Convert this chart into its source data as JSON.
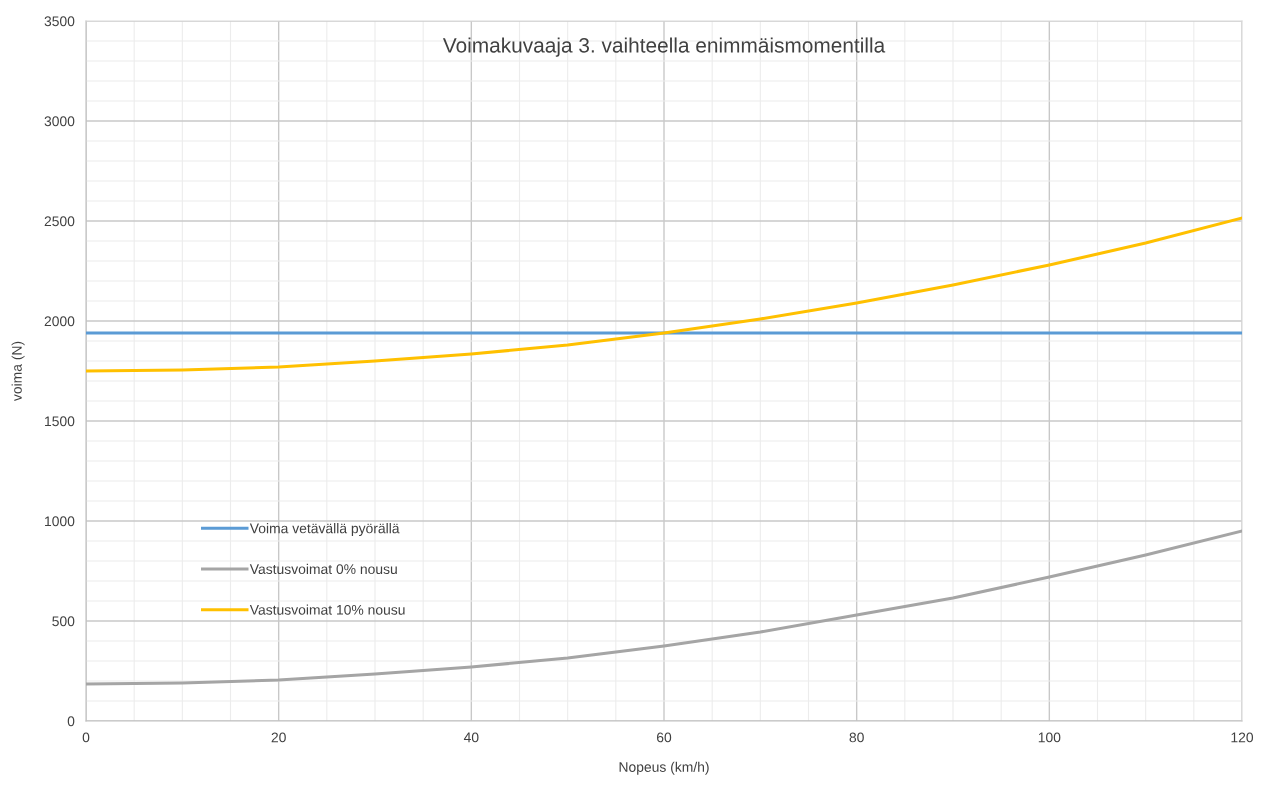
{
  "chart_data": {
    "type": "line",
    "title": "Voimakuvaaja 3. vaihteella enimmäismomentilla",
    "xlabel": "Nopeus (km/h)",
    "ylabel": "voima (N)",
    "x": [
      0,
      10,
      20,
      30,
      40,
      50,
      60,
      70,
      80,
      90,
      100,
      110,
      120
    ],
    "series": [
      {
        "name": "Voima vetävällä pyörällä",
        "color": "#5b9bd5",
        "x": [
          0,
          120
        ],
        "values": [
          1940,
          1940
        ]
      },
      {
        "name": "Vastusvoimat 0% nousu",
        "color": "#a5a5a5",
        "values": [
          185,
          190,
          205,
          235,
          270,
          315,
          375,
          445,
          530,
          615,
          720,
          830,
          950
        ]
      },
      {
        "name": "Vastusvoimat 10% nousu",
        "color": "#ffc000",
        "values": [
          1750,
          1755,
          1770,
          1800,
          1835,
          1880,
          1940,
          2010,
          2090,
          2180,
          2280,
          2390,
          2515
        ]
      }
    ],
    "xlim": [
      0,
      120
    ],
    "xticks": [
      0,
      20,
      40,
      60,
      80,
      100,
      120
    ],
    "ylim": [
      0,
      3500
    ],
    "yticks": [
      0,
      500,
      1000,
      1500,
      2000,
      2500,
      3000,
      3500
    ],
    "grid": true,
    "legend": "bottom left",
    "marker": "none",
    "line_style": "solid"
  }
}
